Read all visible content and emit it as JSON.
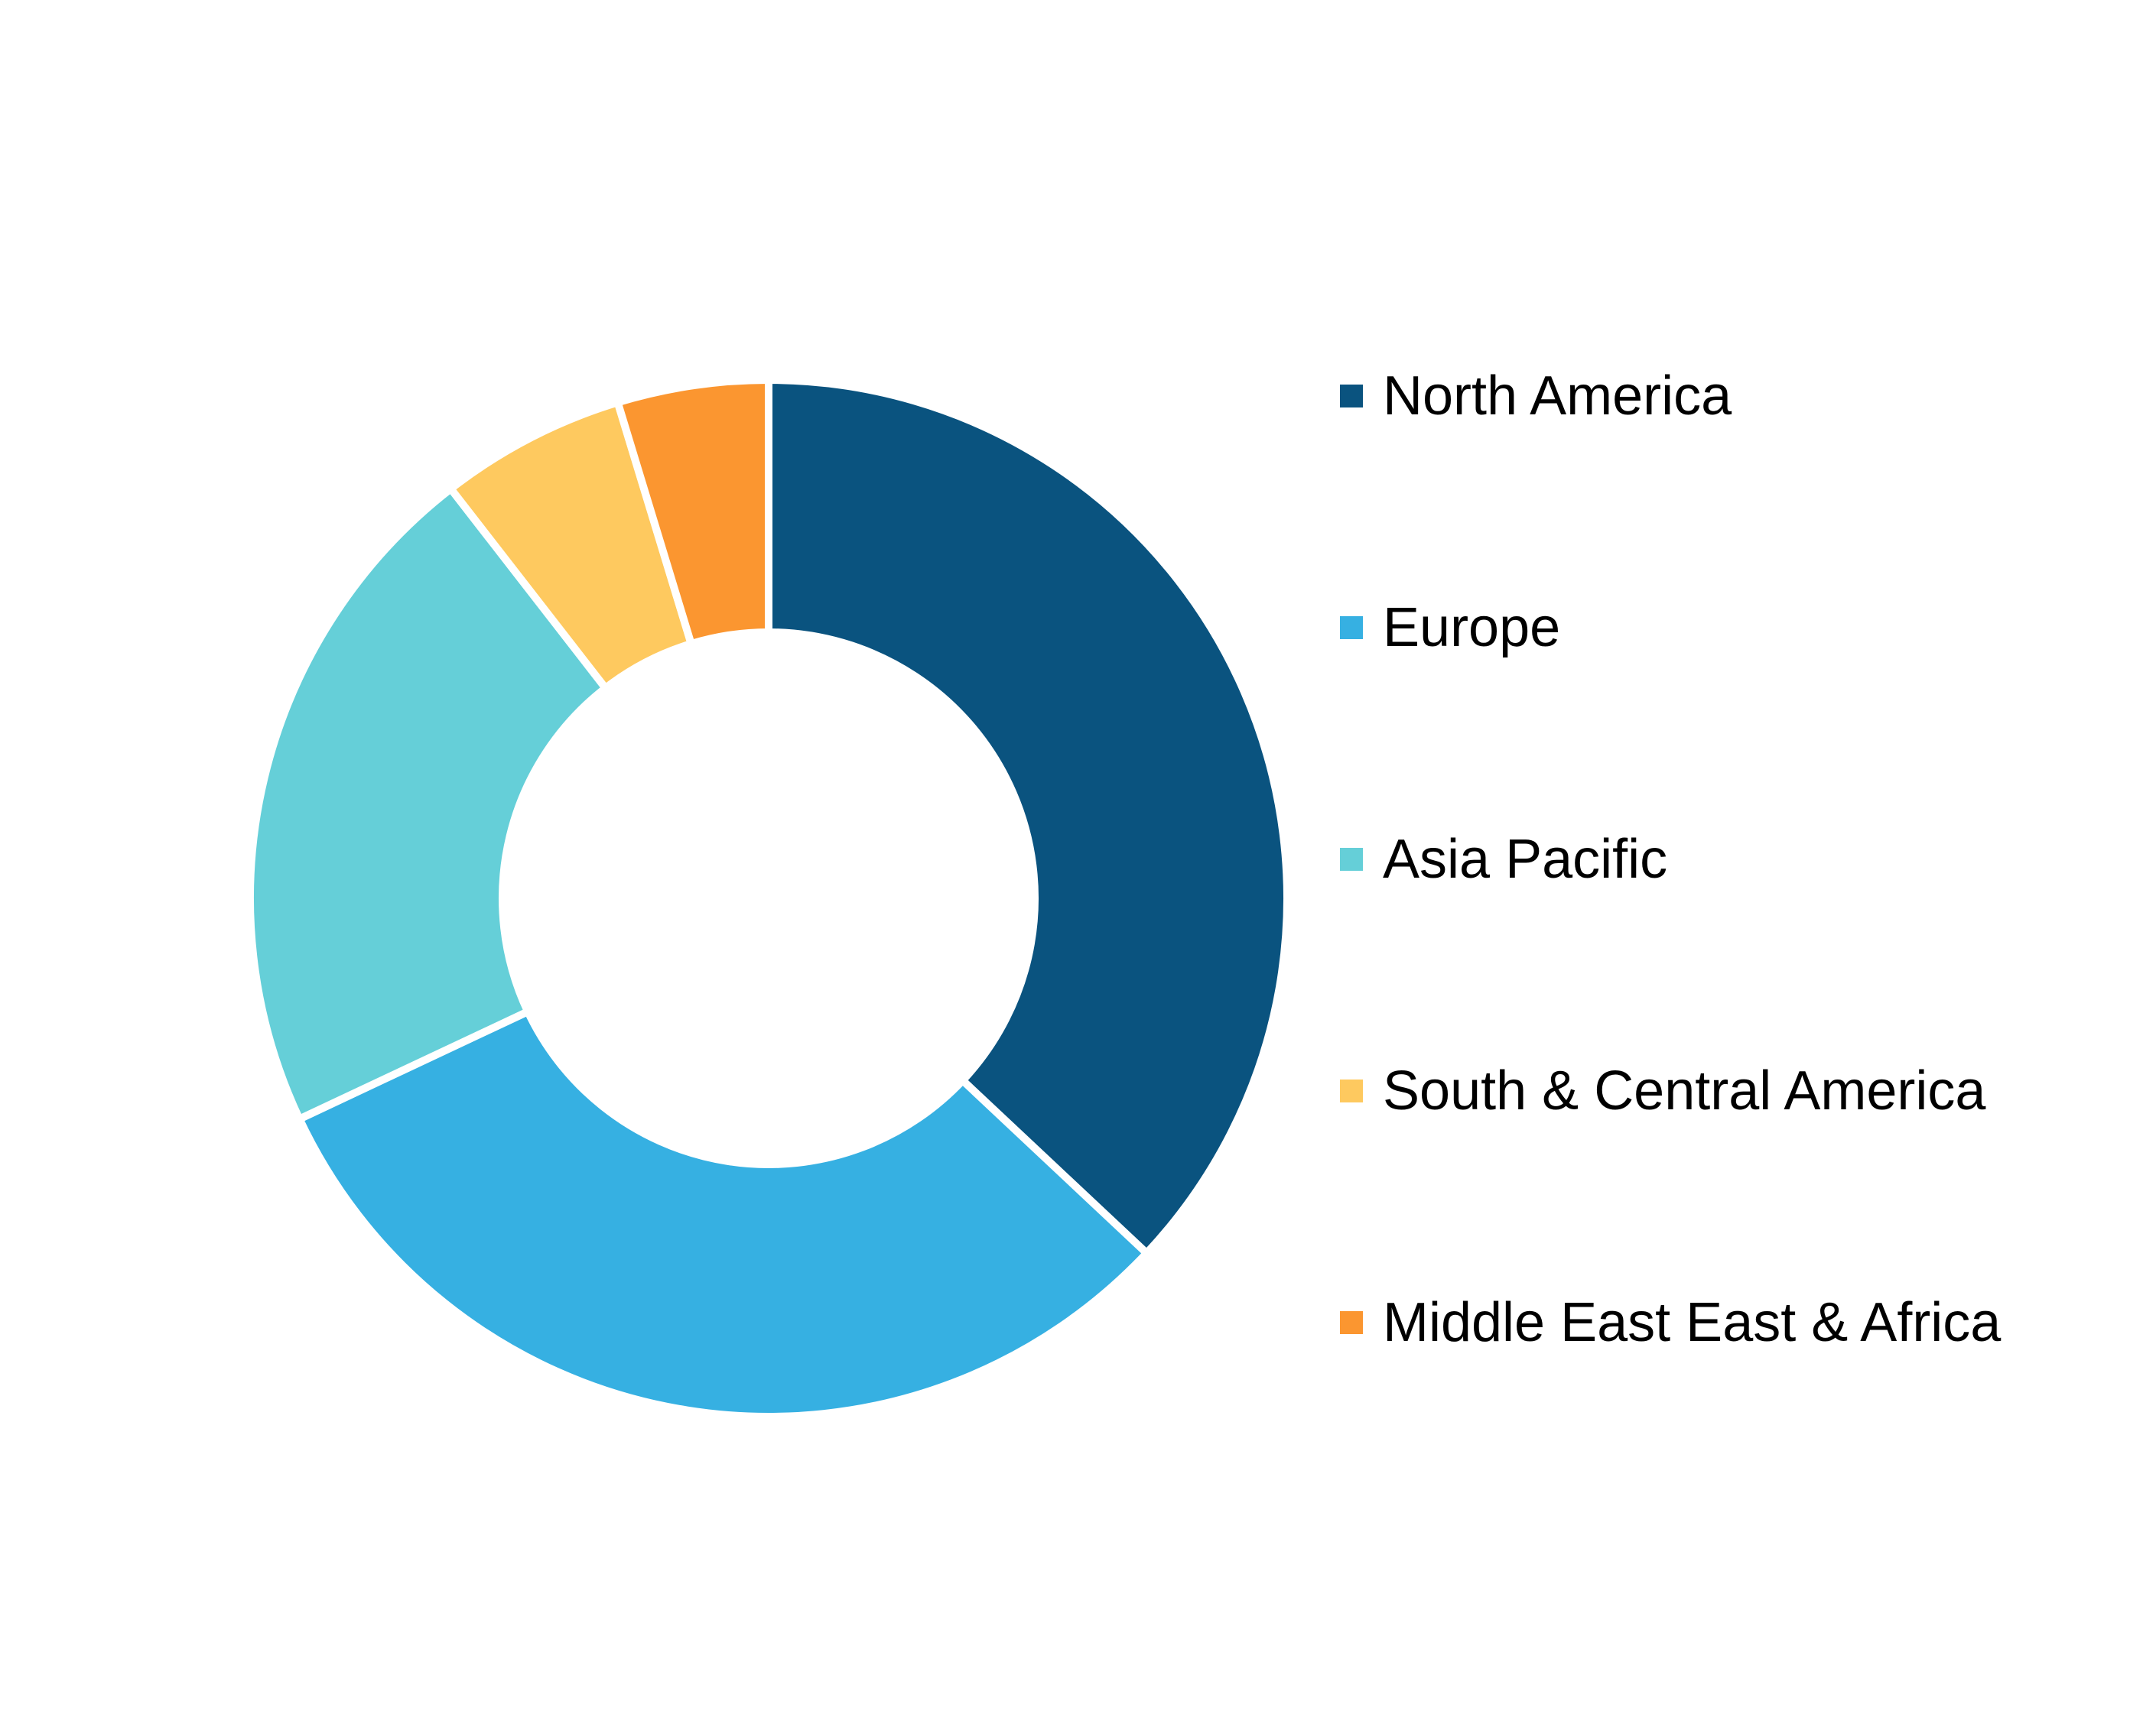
{
  "chart_data": {
    "type": "pie",
    "style": "donut",
    "start_angle": "top, clockwise",
    "legend_position": "right",
    "categories": [
      "North America",
      "Europe",
      "Asia Pacific",
      "South & Central America",
      "Middle East East & Africa"
    ],
    "values": [
      37.0,
      31.0,
      21.5,
      5.8,
      4.7
    ],
    "colors": [
      "#0A537F",
      "#36B0E2",
      "#65CFD8",
      "#FEC95F",
      "#FB9630"
    ]
  }
}
